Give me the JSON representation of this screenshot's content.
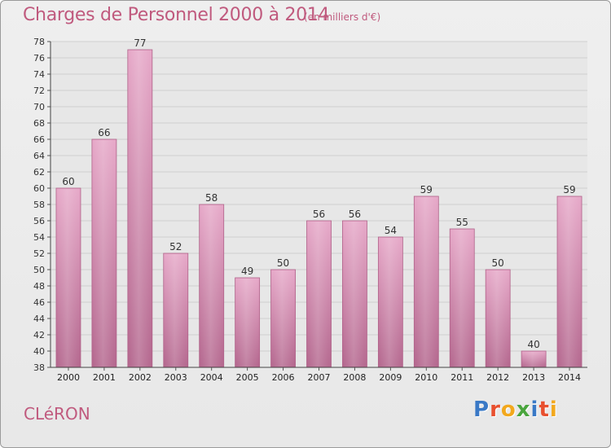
{
  "header": {
    "title": "Charges de Personnel 2000 à 2014",
    "subtitle": "(en milliers d'€)"
  },
  "footer": {
    "town": "CLéRON",
    "logo_letters": [
      "P",
      "r",
      "o",
      "x",
      "i",
      "t",
      "i"
    ],
    "logo_colors": [
      "#3a79c6",
      "#e8502f",
      "#f2a81d",
      "#4aa53e",
      "#3a79c6",
      "#e8502f",
      "#f2a81d"
    ]
  },
  "colors": {
    "title": "#c05a7e",
    "bar_top": "#e4a3c5",
    "bar_bottom": "#b5688f",
    "grid": "#cfcfcf",
    "background": "#ececec"
  },
  "chart_data": {
    "type": "bar",
    "categories": [
      "2000",
      "2001",
      "2002",
      "2003",
      "2004",
      "2005",
      "2006",
      "2007",
      "2008",
      "2009",
      "2010",
      "2011",
      "2012",
      "2013",
      "2014"
    ],
    "values": [
      60,
      66,
      77,
      52,
      58,
      49,
      50,
      56,
      56,
      54,
      59,
      55,
      50,
      40,
      59
    ],
    "ylim": [
      38,
      78
    ],
    "ytick_step": 2,
    "grid": true
  }
}
